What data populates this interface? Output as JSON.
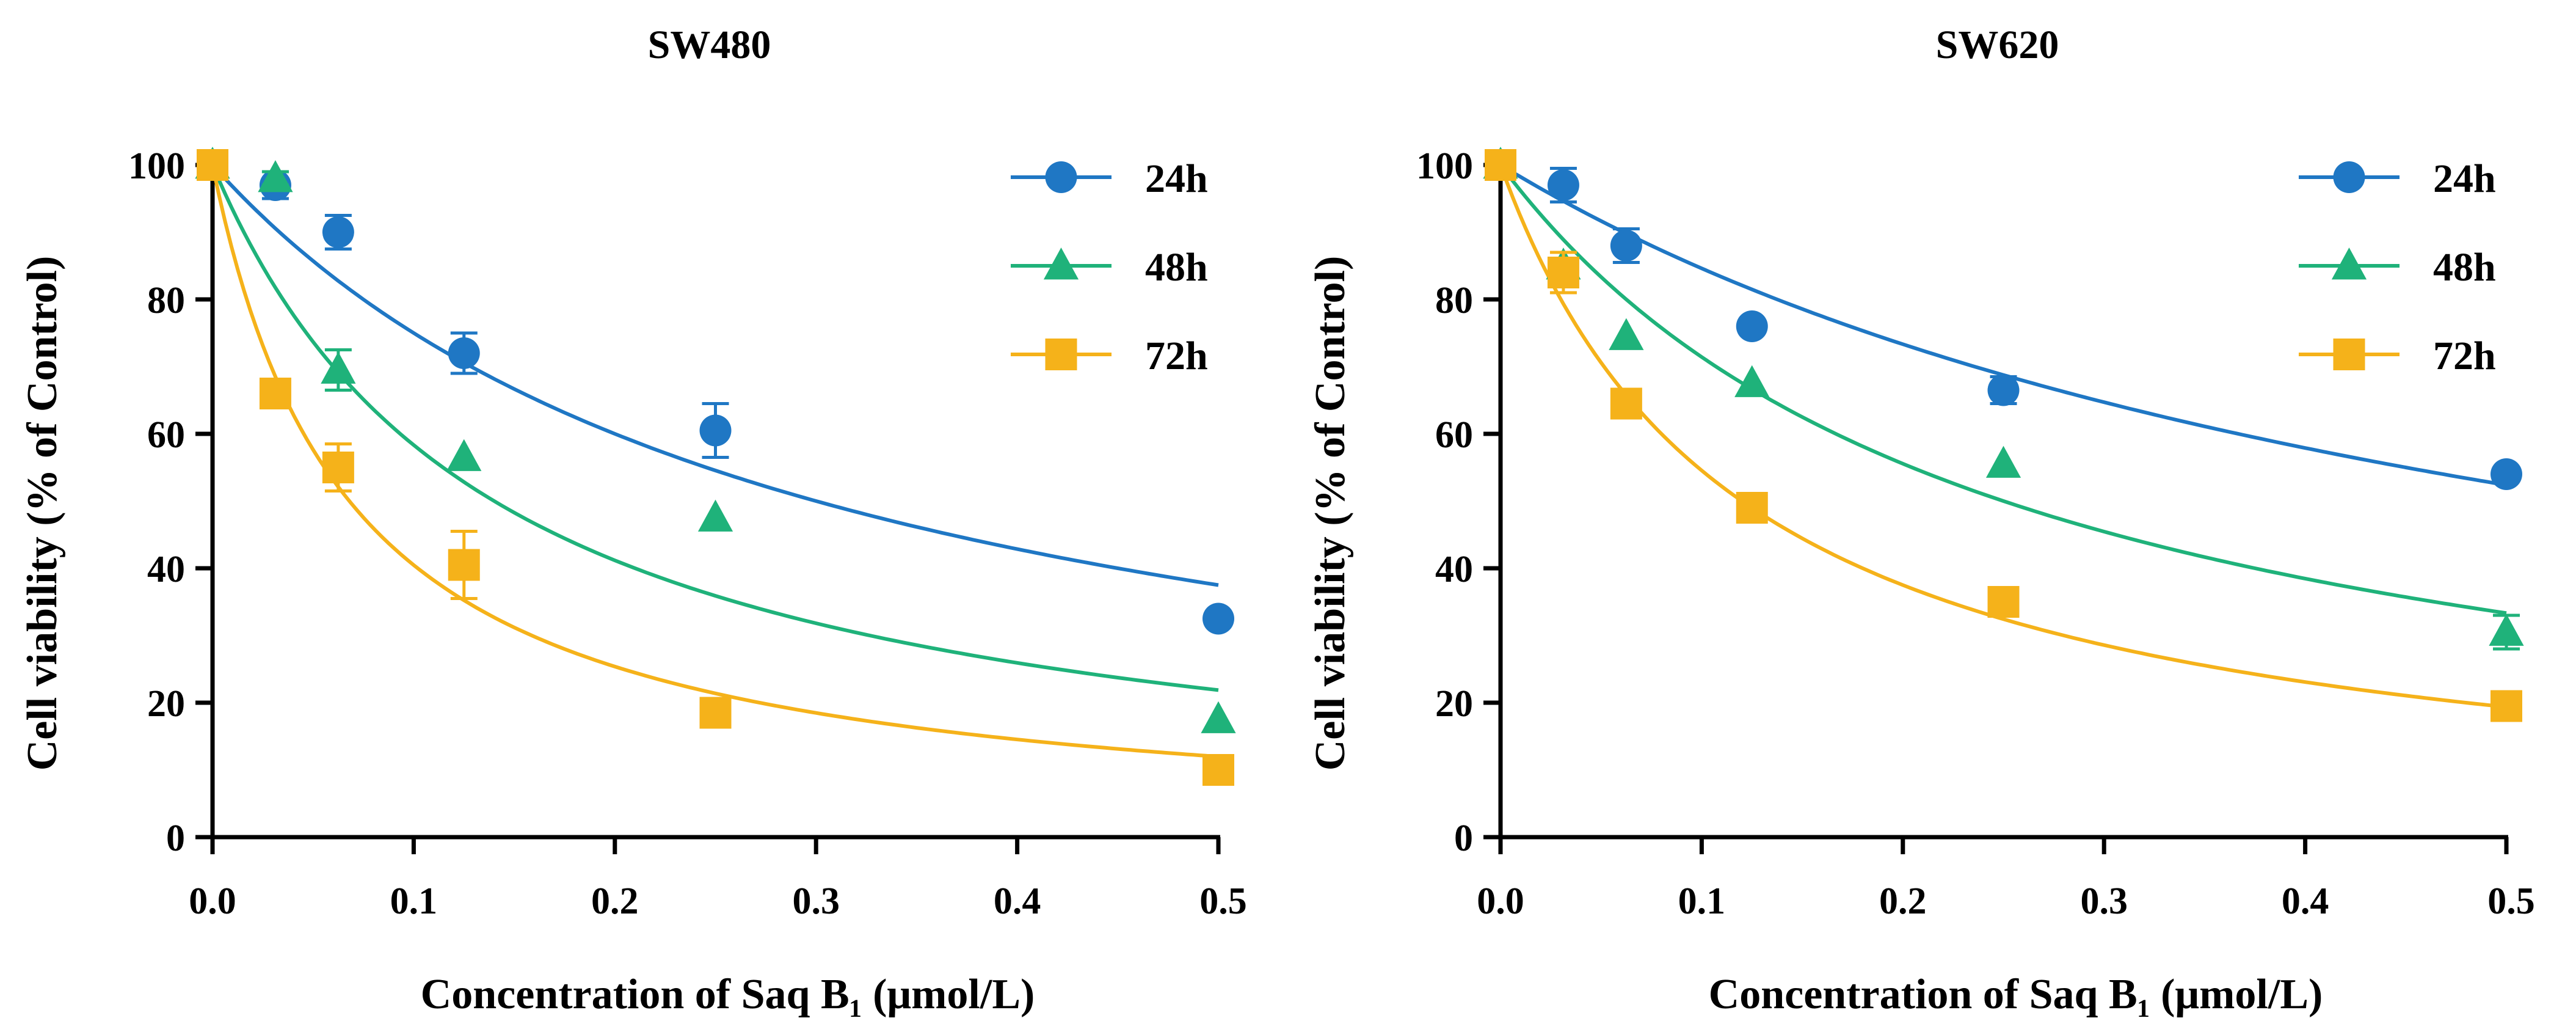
{
  "chart_data": [
    {
      "type": "scatter",
      "title": "SW480",
      "xlabel": "Concentration of Saq B₁  (μmol/L)",
      "ylabel": "Cell viability (% of Control)",
      "xlim": [
        0,
        0.5
      ],
      "ylim": [
        0,
        100
      ],
      "xticks": [
        "0.0",
        "0.1",
        "0.2",
        "0.3",
        "0.4",
        "0.5"
      ],
      "yticks": [
        "0",
        "20",
        "40",
        "60",
        "80",
        "100"
      ],
      "legend_position": "top-right",
      "x": [
        0,
        0.03125,
        0.0625,
        0.125,
        0.25,
        0.5
      ],
      "series": [
        {
          "name": "24h",
          "color": "#1f77c4",
          "marker": "circle",
          "values": [
            100,
            97,
            90,
            72,
            60.5,
            32.5
          ],
          "errors": [
            0,
            2,
            2.5,
            3,
            4,
            0
          ],
          "fit_ic50": 0.3
        },
        {
          "name": "48h",
          "color": "#1fb27a",
          "marker": "triangle",
          "values": [
            100,
            98,
            69.5,
            56.5,
            47.5,
            17.5
          ],
          "errors": [
            0,
            1,
            3,
            0,
            0,
            0
          ],
          "fit_ic50": 0.14
        },
        {
          "name": "72h",
          "color": "#f5b21a",
          "marker": "square",
          "values": [
            100,
            66,
            55,
            40.5,
            18.5,
            10
          ],
          "errors": [
            0,
            0,
            3.5,
            5,
            0,
            0
          ],
          "fit_ic50": 0.068
        }
      ]
    },
    {
      "type": "scatter",
      "title": "SW620",
      "xlabel": "Concentration of Saq B₁  (μmol/L)",
      "ylabel": "Cell viability (% of Control)",
      "xlim": [
        0,
        0.5
      ],
      "ylim": [
        0,
        100
      ],
      "xticks": [
        "0.0",
        "0.1",
        "0.2",
        "0.3",
        "0.4",
        "0.5"
      ],
      "yticks": [
        "0",
        "20",
        "40",
        "60",
        "80",
        "100"
      ],
      "legend_position": "top-right",
      "x": [
        0,
        0.03125,
        0.0625,
        0.125,
        0.25,
        0.5
      ],
      "series": [
        {
          "name": "24h",
          "color": "#1f77c4",
          "marker": "circle",
          "values": [
            100,
            97,
            88,
            76,
            66.5,
            54
          ],
          "errors": [
            0,
            2.5,
            2.5,
            0,
            2,
            0
          ],
          "fit_ic50": 0.55
        },
        {
          "name": "48h",
          "color": "#1fb27a",
          "marker": "triangle",
          "values": [
            100,
            85,
            74.5,
            67.5,
            55.5,
            30.5
          ],
          "errors": [
            0,
            0,
            0,
            0,
            0,
            2.5
          ],
          "fit_ic50": 0.25
        },
        {
          "name": "72h",
          "color": "#f5b21a",
          "marker": "square",
          "values": [
            100,
            84,
            64.5,
            49,
            35,
            19.5
          ],
          "errors": [
            0,
            3,
            0,
            0,
            0,
            0
          ],
          "fit_ic50": 0.12
        }
      ]
    }
  ]
}
